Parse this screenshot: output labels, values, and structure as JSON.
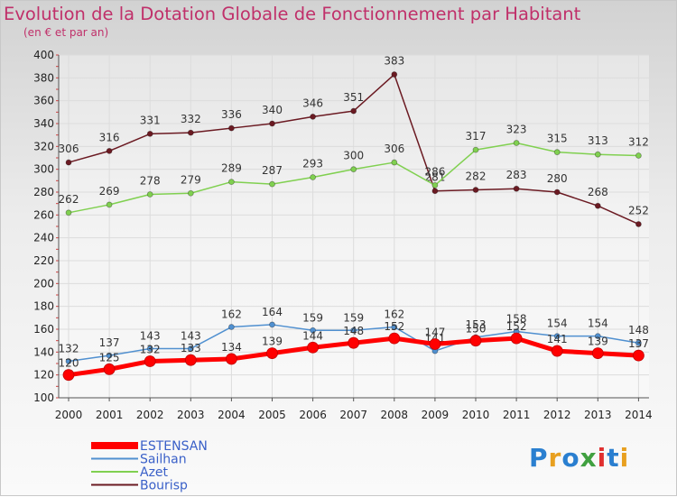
{
  "header": {
    "title": "Evolution de la Dotation Globale de Fonctionnement par Habitant",
    "subtitle": "(en € et par an)"
  },
  "logo": {
    "text": "Proxiti",
    "colors": [
      "#2a7fd0",
      "#e8a020",
      "#2a7fd0",
      "#40a040",
      "#e03030",
      "#2a7fd0",
      "#e8a020"
    ]
  },
  "chart_data": {
    "type": "line",
    "categories": [
      "2000",
      "2001",
      "2002",
      "2003",
      "2004",
      "2005",
      "2006",
      "2007",
      "2008",
      "2009",
      "2010",
      "2011",
      "2012",
      "2013",
      "2014"
    ],
    "ylim": [
      100,
      400
    ],
    "yticks": [
      100,
      120,
      140,
      160,
      180,
      200,
      220,
      240,
      260,
      280,
      300,
      320,
      340,
      360,
      380,
      400
    ],
    "grid": true,
    "legend_position": "bottom-left",
    "series": [
      {
        "name": "Bourisp",
        "color": "#6b1a22",
        "values": [
          306,
          316,
          331,
          332,
          336,
          340,
          346,
          351,
          383,
          281,
          282,
          283,
          280,
          268,
          252
        ]
      },
      {
        "name": "Azet",
        "color": "#80d050",
        "values": [
          262,
          269,
          278,
          279,
          289,
          287,
          293,
          300,
          306,
          286,
          317,
          323,
          315,
          313,
          312
        ]
      },
      {
        "name": "Sailhan",
        "color": "#5090d0",
        "values": [
          132,
          137,
          143,
          143,
          162,
          164,
          159,
          159,
          162,
          141,
          153,
          158,
          154,
          154,
          148
        ]
      },
      {
        "name": "ESTENSAN",
        "color": "#ff0000",
        "values": [
          120,
          125,
          132,
          133,
          134,
          139,
          144,
          148,
          152,
          147,
          150,
          152,
          141,
          139,
          137
        ]
      }
    ],
    "legend_order": [
      "ESTENSAN",
      "Sailhan",
      "Azet",
      "Bourisp"
    ]
  }
}
